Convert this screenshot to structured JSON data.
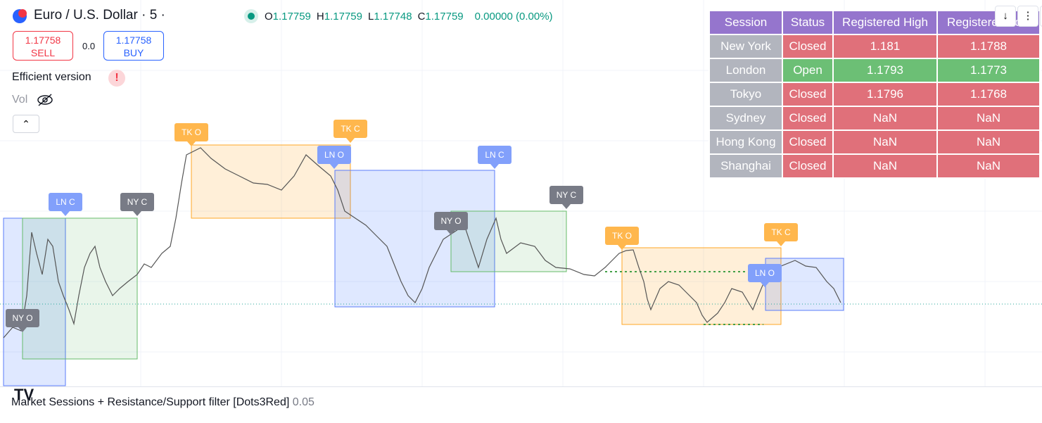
{
  "header": {
    "symbol": "Euro / U.S. Dollar · 5 ·",
    "ohlc": [
      {
        "label": "O",
        "value": "1.17759"
      },
      {
        "label": "H",
        "value": "1.17759"
      },
      {
        "label": "L",
        "value": "1.17748"
      },
      {
        "label": "C",
        "value": "1.17759"
      }
    ],
    "change": "0.00000 (0.00%)"
  },
  "trade": {
    "sell_price": "1.17758",
    "sell_label": "SELL",
    "spread": "0.0",
    "buy_price": "1.17758",
    "buy_label": "BUY"
  },
  "indicators": {
    "efficient": "Efficient version",
    "warning": "!",
    "volume": "Vol"
  },
  "session_labels": [
    "NY O",
    "LN C",
    "NY C",
    "TK O",
    "TK C",
    "LN O",
    "LN C",
    "NY O",
    "NY C",
    "TK O",
    "TK C",
    "LN O"
  ],
  "table": {
    "headers": [
      "Session",
      "Status",
      "Registered High",
      "Registered Low"
    ],
    "rows": [
      [
        "New York",
        "Closed",
        "1.181",
        "1.1788"
      ],
      [
        "London",
        "Open",
        "1.1793",
        "1.1773"
      ],
      [
        "Tokyo",
        "Closed",
        "1.1796",
        "1.1768"
      ],
      [
        "Sydney",
        "Closed",
        "NaN",
        "NaN"
      ],
      [
        "Hong Kong",
        "Closed",
        "NaN",
        "NaN"
      ],
      [
        "Shanghai",
        "Closed",
        "NaN",
        "NaN"
      ]
    ]
  },
  "footer": {
    "indicator": "Market Sessions + Resistance/Support filter [Dots3Red]",
    "value": "0.05"
  }
}
